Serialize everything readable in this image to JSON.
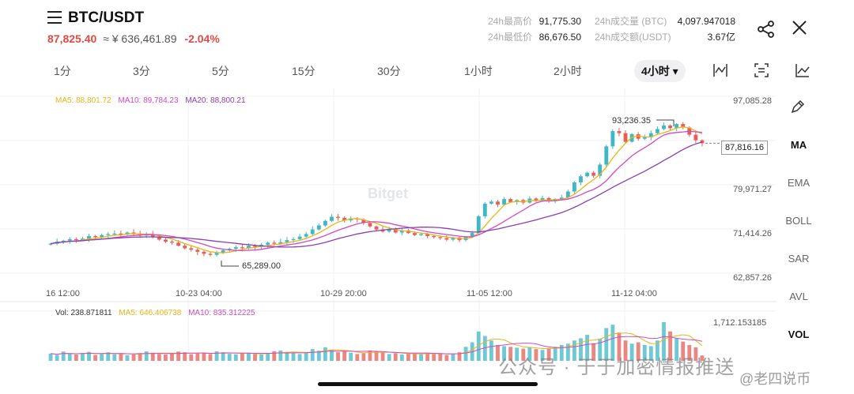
{
  "header": {
    "pair": "BTC/USDT",
    "last_price": "87,825.40",
    "cny_price": "≈ ¥ 636,461.89",
    "change": "-2.04%"
  },
  "stats": {
    "high_label": "24h最高价",
    "high_value": "91,775.30",
    "low_label": "24h最低价",
    "low_value": "86,676.50",
    "vol_btc_label": "24h成交量 (BTC)",
    "vol_btc_value": "4,097.947018",
    "vol_usdt_label": "24h成交额(USDT)",
    "vol_usdt_value": "3.67亿"
  },
  "tabs": [
    "1分",
    "3分",
    "5分",
    "15分",
    "30分",
    "1小时",
    "2小时"
  ],
  "active_tab": "4小时 ▾",
  "ma_legend": {
    "ma5": "MA5: 88,801.72",
    "ma10": "MA10: 89,784.23",
    "ma20": "MA20: 88,800.21"
  },
  "vol_legend": {
    "vol": "Vol: 238.871811",
    "ma5": "MA5: 646.406738",
    "ma10": "MA10: 835.312225"
  },
  "y_labels": [
    "97,085.28",
    "87,816.16",
    "79,971.27",
    "71,414.26",
    "62,857.26"
  ],
  "x_labels": [
    "16 12:00",
    "10-23 04:00",
    "10-29 20:00",
    "11-05 12:00",
    "11-12 04:00"
  ],
  "annotations": {
    "high": "93,236.35",
    "low": "65,289.00",
    "current": "87,816.16",
    "vol_max": "1,712.153185"
  },
  "watermark": "Bitget",
  "indicators": [
    "MA",
    "EMA",
    "BOLL",
    "SAR",
    "AVL",
    "VOL"
  ],
  "overlay": {
    "line1": "公众号 · 于于加密情报推送",
    "line2": "@老四说币"
  },
  "colors": {
    "up": "#3fb7c6",
    "down": "#e45f58",
    "ma5": "#e9b516",
    "ma10": "#d04ac2",
    "ma20": "#8a3fb0"
  },
  "chart_data": {
    "type": "candlestick",
    "title": "BTC/USDT 4小时",
    "ylim": [
      60000,
      98000
    ],
    "y_ticks": [
      97085.28,
      79971.27,
      71414.26,
      62857.26
    ],
    "close": [
      68000,
      68400,
      68600,
      68900,
      68700,
      69000,
      69500,
      69300,
      69700,
      69900,
      70000,
      69800,
      70200,
      70000,
      69600,
      69900,
      69400,
      68800,
      68400,
      68200,
      67600,
      67100,
      66800,
      66400,
      66000,
      65800,
      66200,
      66700,
      67000,
      67300,
      67100,
      67600,
      67400,
      67800,
      68200,
      68000,
      68300,
      68700,
      68900,
      69400,
      69900,
      70800,
      71600,
      72500,
      73300,
      73100,
      72600,
      73000,
      72800,
      72100,
      71400,
      70800,
      70400,
      70900,
      70200,
      70600,
      70100,
      69700,
      69900,
      69500,
      69300,
      69100,
      68800,
      69200,
      68700,
      69300,
      70100,
      73400,
      75900,
      76300,
      75700,
      76800,
      76200,
      76600,
      76100,
      76900,
      76500,
      77000,
      76400,
      76800,
      77100,
      78300,
      80100,
      81300,
      82000,
      81400,
      83600,
      87200,
      90200,
      89800,
      88100,
      89600,
      88700,
      89000,
      89800,
      90600,
      91300,
      90800,
      91600,
      90900,
      89500,
      88400,
      87816
    ],
    "ma5": 88801.72,
    "ma10": 89784.23,
    "ma20": 88800.21,
    "volume": [
      320,
      260,
      410,
      300,
      280,
      350,
      400,
      260,
      300,
      380,
      290,
      330,
      250,
      280,
      340,
      420,
      360,
      300,
      280,
      330,
      410,
      380,
      290,
      320,
      360,
      300,
      420,
      380,
      310,
      290,
      330,
      360,
      300,
      280,
      350,
      420,
      460,
      390,
      340,
      300,
      380,
      520,
      450,
      600,
      480,
      380,
      420,
      360,
      300,
      340,
      460,
      420,
      380,
      300,
      340,
      280,
      310,
      330,
      290,
      360,
      300,
      330,
      260,
      300,
      380,
      620,
      820,
      1300,
      1100,
      900,
      700,
      650,
      620,
      580,
      540,
      600,
      520,
      480,
      560,
      620,
      700,
      760,
      900,
      1000,
      1150,
      780,
      980,
      1450,
      1600,
      1250,
      900,
      760,
      820,
      700,
      650,
      900,
      1712,
      1300,
      1000,
      850,
      700,
      600,
      238
    ],
    "vol_max": 1712.153185
  }
}
